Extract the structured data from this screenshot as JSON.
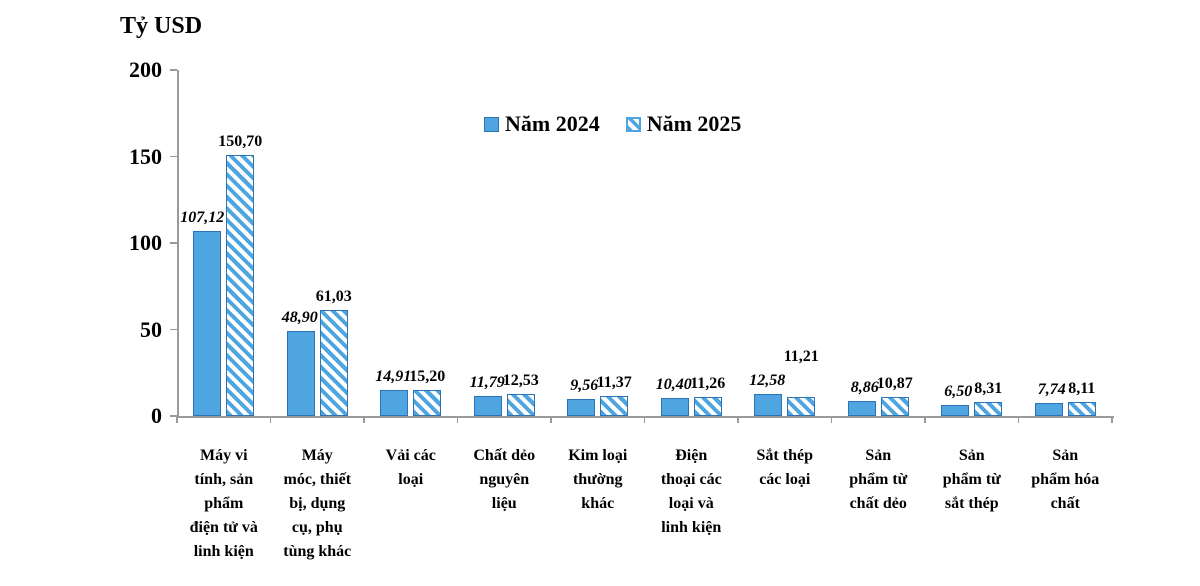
{
  "chart_data": {
    "type": "bar",
    "title": "",
    "ylabel": "Tỷ USD",
    "xlabel": "",
    "ylim": [
      0,
      200
    ],
    "yticks": [
      0,
      50,
      100,
      150,
      200
    ],
    "ytick_labels": [
      "0",
      "50",
      "100",
      "150",
      "200"
    ],
    "grid": false,
    "legend_position": "top-center",
    "decimal_separator": ",",
    "categories": [
      "Máy vi tính, sản phẩm điện tử và linh kiện",
      "Máy móc, thiết bị, dụng cụ, phụ tùng khác",
      "Vải các loại",
      "Chất dẻo nguyên liệu",
      "Kim loại thường khác",
      "Điện thoại các loại và linh kiện",
      "Sắt thép các loại",
      "Sản phẩm từ chất dẻo",
      "Sản phẩm từ sắt thép",
      "Sản phẩm hóa chất"
    ],
    "category_tick_lines": [
      [
        "Máy vi",
        "tính, sản",
        "phẩm",
        "điện tử và",
        "linh kiện"
      ],
      [
        "Máy",
        "móc, thiết",
        "bị, dụng",
        "cụ, phụ",
        "tùng khác"
      ],
      [
        "Vải các",
        "loại"
      ],
      [
        "Chất dẻo",
        "nguyên",
        "liệu"
      ],
      [
        "Kim loại",
        "thường",
        "khác"
      ],
      [
        "Điện",
        "thoại các",
        "loại và",
        "linh kiện"
      ],
      [
        "Sắt thép",
        "các loại"
      ],
      [
        "Sản",
        "phẩm từ",
        "chất dẻo"
      ],
      [
        "Sản",
        "phẩm từ",
        "sắt thép"
      ],
      [
        "Sản",
        "phẩm hóa",
        "chất"
      ]
    ],
    "series": [
      {
        "name": "Năm 2024",
        "style": "solid",
        "values": [
          107.12,
          48.9,
          14.91,
          11.79,
          9.56,
          10.4,
          12.58,
          8.86,
          6.5,
          7.74
        ],
        "labels": [
          "107,12",
          "48,90",
          "14,91",
          "11,79",
          "9,56",
          "10,40",
          "12,58",
          "8,86",
          "6,50",
          "7,74"
        ]
      },
      {
        "name": "Năm 2025",
        "style": "hatched",
        "values": [
          150.7,
          61.03,
          15.2,
          12.53,
          11.37,
          11.26,
          11.21,
          10.87,
          8.31,
          8.11
        ],
        "labels": [
          "150,70",
          "61,03",
          "15,20",
          "12,53",
          "11,37",
          "11,26",
          "11,21",
          "10,87",
          "8,31",
          "8,11"
        ]
      }
    ],
    "colors": {
      "bar_fill": "#4FA5E0",
      "bar_border": "#2D74B7",
      "hatch_stripe": "#4FA5E0",
      "axis": "#9A9A9A",
      "text": "#000000",
      "background": "#FFFFFF"
    }
  }
}
